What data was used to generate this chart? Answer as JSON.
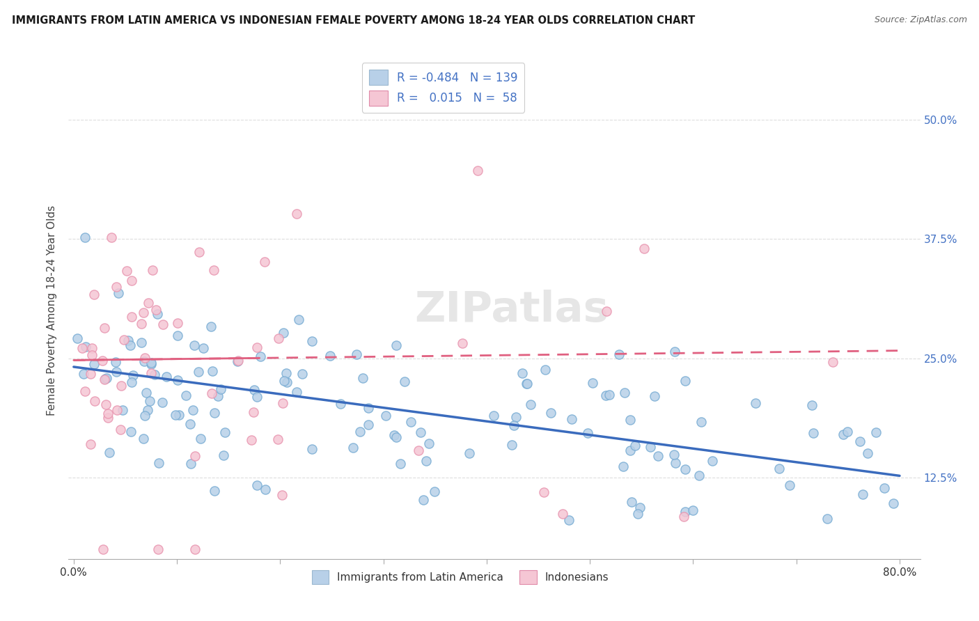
{
  "title": "IMMIGRANTS FROM LATIN AMERICA VS INDONESIAN FEMALE POVERTY AMONG 18-24 YEAR OLDS CORRELATION CHART",
  "source": "Source: ZipAtlas.com",
  "ylabel": "Female Poverty Among 18-24 Year Olds",
  "xlim": [
    -0.005,
    0.82
  ],
  "ylim": [
    0.04,
    0.56
  ],
  "xtick_positions": [
    0.0,
    0.1,
    0.2,
    0.3,
    0.4,
    0.5,
    0.6,
    0.7,
    0.8
  ],
  "xticklabels": [
    "0.0%",
    "",
    "",
    "",
    "",
    "",
    "",
    "",
    "80.0%"
  ],
  "ytick_positions": [
    0.125,
    0.25,
    0.375,
    0.5
  ],
  "ytick_labels": [
    "12.5%",
    "25.0%",
    "37.5%",
    "50.0%"
  ],
  "r_blue": -0.484,
  "n_blue": 139,
  "r_pink": 0.015,
  "n_pink": 58,
  "blue_face_color": "#b8d0e8",
  "blue_edge_color": "#7aadd4",
  "pink_face_color": "#f5c6d4",
  "pink_edge_color": "#e896b0",
  "blue_line_color": "#3a6bbd",
  "pink_line_color": "#e06080",
  "grid_color": "#dddddd",
  "watermark": "ZIPatlas",
  "blue_trend_start_y": 0.241,
  "blue_trend_end_y": 0.127,
  "pink_trend_start_y": 0.248,
  "pink_trend_end_y": 0.258
}
